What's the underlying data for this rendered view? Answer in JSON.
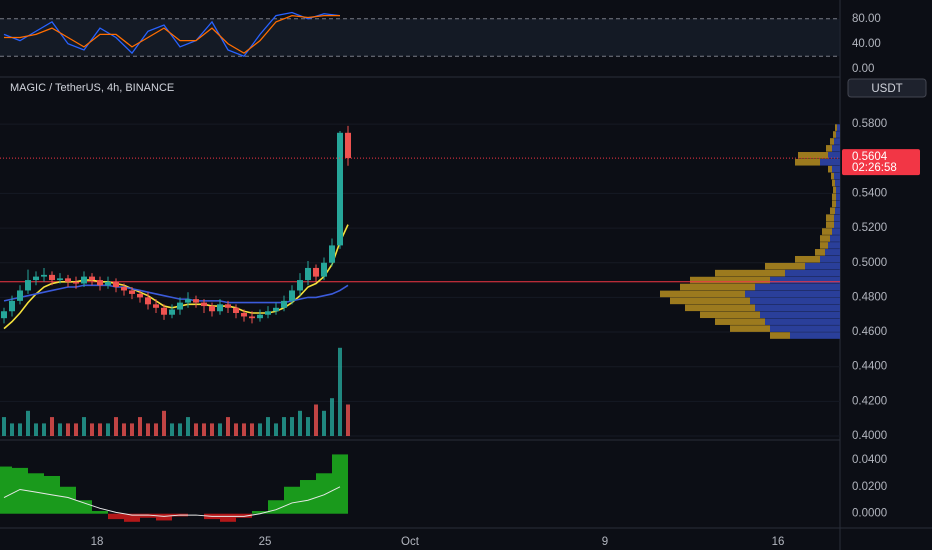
{
  "chart_data": {
    "type": "candlestick",
    "title": "MAGIC / TetherUS, 4h, BINANCE",
    "currency": "USDT",
    "open": [
      0.468,
      0.472,
      0.478,
      0.484,
      0.49,
      0.492,
      0.493,
      0.49,
      0.491,
      0.489,
      0.488,
      0.492,
      0.49,
      0.487,
      0.489,
      0.486,
      0.484,
      0.482,
      0.48,
      0.476,
      0.474,
      0.47,
      0.473,
      0.477,
      0.479,
      0.477,
      0.475,
      0.472,
      0.476,
      0.474,
      0.471,
      0.469,
      0.468,
      0.47,
      0.472,
      0.474,
      0.478,
      0.484,
      0.49,
      0.497,
      0.492,
      0.5,
      0.51,
      0.575
    ],
    "high": [
      0.474,
      0.481,
      0.487,
      0.496,
      0.495,
      0.497,
      0.495,
      0.494,
      0.493,
      0.492,
      0.495,
      0.494,
      0.492,
      0.492,
      0.491,
      0.488,
      0.486,
      0.484,
      0.483,
      0.479,
      0.476,
      0.476,
      0.48,
      0.483,
      0.481,
      0.479,
      0.477,
      0.479,
      0.478,
      0.476,
      0.473,
      0.472,
      0.473,
      0.475,
      0.477,
      0.481,
      0.487,
      0.494,
      0.501,
      0.499,
      0.503,
      0.514,
      0.576,
      0.579
    ],
    "low": [
      0.465,
      0.469,
      0.476,
      0.482,
      0.487,
      0.489,
      0.487,
      0.488,
      0.486,
      0.485,
      0.486,
      0.487,
      0.484,
      0.485,
      0.483,
      0.481,
      0.479,
      0.477,
      0.473,
      0.471,
      0.467,
      0.468,
      0.47,
      0.474,
      0.474,
      0.471,
      0.469,
      0.47,
      0.471,
      0.468,
      0.466,
      0.465,
      0.466,
      0.468,
      0.47,
      0.472,
      0.476,
      0.481,
      0.487,
      0.489,
      0.49,
      0.498,
      0.508,
      0.556
    ],
    "close": [
      0.472,
      0.478,
      0.484,
      0.49,
      0.492,
      0.493,
      0.49,
      0.491,
      0.489,
      0.488,
      0.492,
      0.49,
      0.487,
      0.489,
      0.486,
      0.484,
      0.482,
      0.48,
      0.476,
      0.474,
      0.47,
      0.473,
      0.477,
      0.479,
      0.477,
      0.475,
      0.472,
      0.476,
      0.474,
      0.471,
      0.469,
      0.468,
      0.47,
      0.472,
      0.474,
      0.478,
      0.484,
      0.49,
      0.497,
      0.492,
      0.5,
      0.51,
      0.575,
      0.5604
    ],
    "volume": [
      3,
      2,
      2,
      4,
      2,
      2,
      3,
      2,
      2,
      2,
      3,
      2,
      2,
      2,
      3,
      2,
      2,
      3,
      2,
      2,
      4,
      2,
      2,
      3,
      2,
      2,
      2,
      2,
      3,
      2,
      2,
      2,
      2,
      3,
      2,
      3,
      3,
      4,
      3,
      5,
      4,
      6,
      14,
      5
    ],
    "up_color": "#26a69a",
    "down_color": "#ef5350",
    "ylim": [
      0.3977,
      0.6072
    ],
    "yticks": [
      {
        "value": 0.4,
        "label": "0.4000"
      },
      {
        "value": 0.42,
        "label": "0.4200"
      },
      {
        "value": 0.44,
        "label": "0.4400"
      },
      {
        "value": 0.46,
        "label": "0.4600"
      },
      {
        "value": 0.48,
        "label": "0.4800"
      },
      {
        "value": 0.5,
        "label": "0.5000"
      },
      {
        "value": 0.52,
        "label": "0.5200"
      },
      {
        "value": 0.54,
        "label": "0.5400"
      },
      {
        "value": 0.58,
        "label": "0.5800"
      }
    ],
    "moving_averages": [
      {
        "color": "#f5e13c",
        "values": [
          0.462,
          0.466,
          0.471,
          0.477,
          0.482,
          0.486,
          0.488,
          0.489,
          0.489,
          0.489,
          0.49,
          0.49,
          0.489,
          0.489,
          0.488,
          0.487,
          0.485,
          0.483,
          0.481,
          0.478,
          0.475,
          0.474,
          0.475,
          0.476,
          0.476,
          0.476,
          0.475,
          0.475,
          0.475,
          0.474,
          0.472,
          0.471,
          0.471,
          0.471,
          0.472,
          0.474,
          0.477,
          0.481,
          0.486,
          0.488,
          0.492,
          0.499,
          0.512,
          0.522
        ]
      },
      {
        "color": "#3b5bdb",
        "values": [
          0.478,
          0.479,
          0.48,
          0.481,
          0.482,
          0.483,
          0.484,
          0.485,
          0.486,
          0.486,
          0.487,
          0.487,
          0.487,
          0.487,
          0.486,
          0.486,
          0.485,
          0.484,
          0.483,
          0.482,
          0.481,
          0.48,
          0.479,
          0.479,
          0.478,
          0.478,
          0.478,
          0.478,
          0.477,
          0.477,
          0.477,
          0.477,
          0.477,
          0.477,
          0.477,
          0.477,
          0.478,
          0.479,
          0.48,
          0.48,
          0.481,
          0.482,
          0.484,
          0.487
        ]
      }
    ],
    "hline": {
      "value": 0.489,
      "color": "#f23645"
    },
    "last_price": {
      "value": 0.5604,
      "label": "0.5604",
      "countdown": "02:26:58"
    },
    "profile": {
      "levels": [
        0.458,
        0.462,
        0.466,
        0.47,
        0.474,
        0.478,
        0.482,
        0.486,
        0.49,
        0.494,
        0.498,
        0.502,
        0.506,
        0.51,
        0.514,
        0.518,
        0.522,
        0.526,
        0.53,
        0.534,
        0.538,
        0.542,
        0.546,
        0.55,
        0.554,
        0.558,
        0.562,
        0.566,
        0.57,
        0.574,
        0.578
      ],
      "series": [
        {
          "color": "#2a3f9a",
          "values": [
            50,
            70,
            75,
            80,
            85,
            90,
            95,
            85,
            70,
            55,
            35,
            20,
            15,
            12,
            10,
            8,
            6,
            6,
            5,
            4,
            4,
            4,
            5,
            6,
            8,
            20,
            12,
            8,
            6,
            4,
            3
          ]
        },
        {
          "color": "#9c7a1e",
          "values": [
            20,
            40,
            50,
            60,
            70,
            80,
            85,
            75,
            80,
            70,
            40,
            25,
            10,
            8,
            10,
            10,
            8,
            8,
            5,
            4,
            4,
            3,
            3,
            3,
            4,
            25,
            30,
            6,
            4,
            3,
            2
          ]
        }
      ]
    },
    "xlabels": [
      "18",
      "25",
      "Oct",
      "9",
      "16"
    ],
    "rsi": {
      "ylim": [
        -10,
        110
      ],
      "bands": [
        20,
        80
      ],
      "yticks": [
        {
          "value": 0,
          "label": "0.00"
        },
        {
          "value": 40,
          "label": "40.00"
        },
        {
          "value": 80,
          "label": "80.00"
        }
      ],
      "series": [
        {
          "color": "#2962ff",
          "values": [
            55,
            45,
            60,
            75,
            40,
            30,
            65,
            50,
            25,
            60,
            70,
            35,
            45,
            75,
            30,
            20,
            55,
            85,
            90,
            80,
            88,
            85
          ]
        },
        {
          "color": "#ff6d00",
          "values": [
            50,
            50,
            55,
            65,
            50,
            35,
            55,
            55,
            35,
            50,
            65,
            45,
            45,
            65,
            40,
            25,
            45,
            75,
            85,
            82,
            85,
            85
          ]
        }
      ]
    },
    "oscillator": {
      "ylim": [
        -0.0106,
        0.0547
      ],
      "yticks": [
        {
          "value": 0,
          "label": "0.0000"
        },
        {
          "value": 0.02,
          "label": "0.0200"
        },
        {
          "value": 0.04,
          "label": "0.0400"
        }
      ],
      "values": [
        0.035,
        0.034,
        0.03,
        0.028,
        0.02,
        0.01,
        0.002,
        -0.004,
        -0.006,
        -0.003,
        -0.005,
        -0.002,
        0.0,
        -0.004,
        -0.006,
        -0.003,
        0.002,
        0.01,
        0.02,
        0.025,
        0.03,
        0.044
      ],
      "signal": [
        0.012,
        0.018,
        0.016,
        0.014,
        0.012,
        0.008,
        0.004,
        0.001,
        -0.001,
        -0.001,
        -0.002,
        -0.001,
        -0.001,
        -0.002,
        -0.002,
        -0.002,
        0.0,
        0.003,
        0.008,
        0.01,
        0.014,
        0.02
      ],
      "pos_color": "#1db31d",
      "neg_color": "#d11a1a",
      "signal_color": "#e8e8e8"
    }
  }
}
